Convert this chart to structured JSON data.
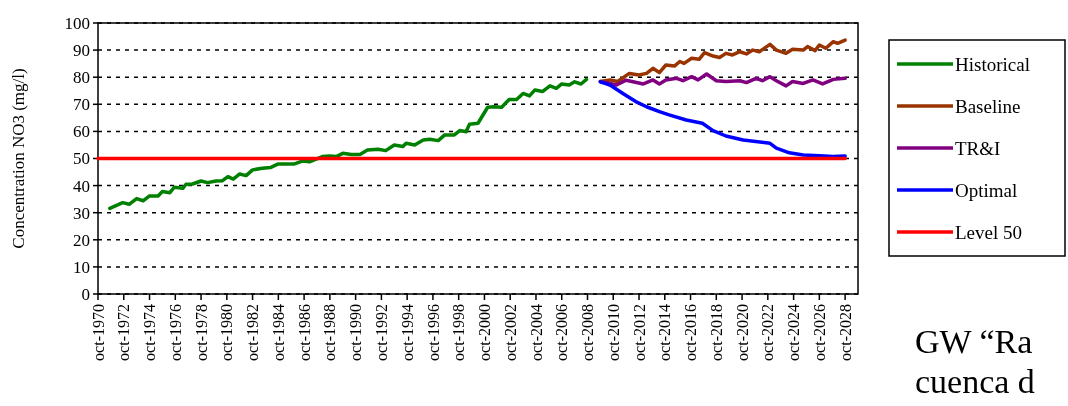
{
  "chart_data": {
    "type": "line",
    "ylabel": "Concentration NO3 (mg/l)",
    "xlim": [
      "1970-10",
      "2029-10"
    ],
    "ylim": [
      0,
      100
    ],
    "yticks": [
      0,
      10,
      20,
      30,
      40,
      50,
      60,
      70,
      80,
      90,
      100
    ],
    "xticks": [
      {
        "value": "1970-10",
        "label": "oct-1970"
      },
      {
        "value": "1972-10",
        "label": "oct-1972"
      },
      {
        "value": "1974-10",
        "label": "oct-1974"
      },
      {
        "value": "1976-10",
        "label": "oct-1976"
      },
      {
        "value": "1978-10",
        "label": "oct-1978"
      },
      {
        "value": "1980-10",
        "label": "oct-1980"
      },
      {
        "value": "1982-10",
        "label": "oct-1982"
      },
      {
        "value": "1984-10",
        "label": "oct-1984"
      },
      {
        "value": "1986-10",
        "label": "oct-1986"
      },
      {
        "value": "1988-10",
        "label": "oct-1988"
      },
      {
        "value": "1990-10",
        "label": "oct-1990"
      },
      {
        "value": "1992-10",
        "label": "oct-1992"
      },
      {
        "value": "1994-10",
        "label": "oct-1994"
      },
      {
        "value": "1996-10",
        "label": "oct-1996"
      },
      {
        "value": "1998-10",
        "label": "oct-1998"
      },
      {
        "value": "2000-10",
        "label": "oct-2000"
      },
      {
        "value": "2002-10",
        "label": "oct-2002"
      },
      {
        "value": "2004-10",
        "label": "oct-2004"
      },
      {
        "value": "2006-10",
        "label": "oct-2006"
      },
      {
        "value": "2008-10",
        "label": "oct-2008"
      },
      {
        "value": "2010-10",
        "label": "oct-2010"
      },
      {
        "value": "2012-10",
        "label": "oct-2012"
      },
      {
        "value": "2014-10",
        "label": "oct-2014"
      },
      {
        "value": "2016-10",
        "label": "oct-2016"
      },
      {
        "value": "2018-10",
        "label": "oct-2018"
      },
      {
        "value": "2020-10",
        "label": "oct-2020"
      },
      {
        "value": "2022-10",
        "label": "oct-2022"
      },
      {
        "value": "2024-10",
        "label": "oct-2024"
      },
      {
        "value": "2026-10",
        "label": "oct-2026"
      },
      {
        "value": "2028-10",
        "label": "oct-2028"
      }
    ],
    "grid": "y",
    "legend": "right",
    "marker": "none",
    "line_style": "solid",
    "annotations": [
      "GW “Ra",
      "cuenca d"
    ],
    "series": [
      {
        "name": "Historical",
        "color": "#008000",
        "x": [
          "1971-09",
          "1972-09",
          "1973-03",
          "1973-10",
          "1974-04",
          "1974-10",
          "1975-06",
          "1975-10",
          "1976-05",
          "1976-09",
          "1977-05",
          "1977-08",
          "1978-02",
          "1978-10",
          "1979-04",
          "1979-12",
          "1980-06",
          "1980-11",
          "1981-04",
          "1981-10",
          "1982-04",
          "1982-10",
          "1983-07",
          "1984-03",
          "1984-10",
          "1986-01",
          "1986-09",
          "1987-03",
          "1988-03",
          "1988-10",
          "1989-04",
          "1989-10",
          "1990-06",
          "1991-02",
          "1991-09",
          "1992-07",
          "1993-02",
          "1993-10",
          "1994-06",
          "1994-09",
          "1995-05",
          "1996-01",
          "1996-07",
          "1997-03",
          "1997-09",
          "1998-06",
          "1998-11",
          "1999-05",
          "1999-08",
          "2000-04",
          "2001-01",
          "2001-07",
          "2002-02",
          "2002-09",
          "2003-04",
          "2003-10",
          "2004-04",
          "2004-09",
          "2005-04",
          "2005-11",
          "2006-05",
          "2006-10",
          "2007-05",
          "2007-10",
          "2008-04",
          "2008-09"
        ],
        "values": [
          31.6,
          33.7,
          33.1,
          35.2,
          34.4,
          36.2,
          36.2,
          37.8,
          37.4,
          39.4,
          39.0,
          40.5,
          40.6,
          41.7,
          41.1,
          41.7,
          41.8,
          43.3,
          42.4,
          44.3,
          43.7,
          45.8,
          46.4,
          46.7,
          48.0,
          48.0,
          49.1,
          48.8,
          50.7,
          50.9,
          50.7,
          51.9,
          51.5,
          51.5,
          53.1,
          53.4,
          52.9,
          55.0,
          54.4,
          55.6,
          55.0,
          56.8,
          57.1,
          56.6,
          58.7,
          58.7,
          60.3,
          59.9,
          62.6,
          63.0,
          68.9,
          69.1,
          68.9,
          71.8,
          71.8,
          74.0,
          73.1,
          75.3,
          74.7,
          76.8,
          75.9,
          77.5,
          77.1,
          78.3,
          77.5,
          79.2
        ]
      },
      {
        "name": "Baseline",
        "color": "#993300",
        "x": [
          "2009-10",
          "2010-07",
          "2011-02",
          "2012-01",
          "2012-10",
          "2013-05",
          "2013-11",
          "2014-05",
          "2014-11",
          "2015-07",
          "2015-12",
          "2016-04",
          "2016-11",
          "2017-06",
          "2017-11",
          "2018-07",
          "2019-01",
          "2019-07",
          "2020-01",
          "2020-08",
          "2021-02",
          "2021-08",
          "2022-02",
          "2022-12",
          "2023-06",
          "2024-03",
          "2024-09",
          "2025-07",
          "2025-11",
          "2026-06",
          "2026-10",
          "2027-04",
          "2027-11",
          "2028-03",
          "2028-10"
        ],
        "values": [
          78.4,
          79.0,
          78.4,
          81.4,
          80.8,
          81.4,
          83.3,
          81.7,
          84.5,
          84.1,
          85.8,
          85.1,
          87.0,
          86.6,
          89.1,
          87.8,
          87.3,
          88.8,
          88.2,
          89.4,
          88.6,
          90.0,
          89.4,
          92.1,
          90.0,
          88.8,
          90.3,
          90.0,
          91.3,
          89.8,
          91.9,
          90.7,
          93.1,
          92.5,
          93.7
        ]
      },
      {
        "name": "TR&I",
        "color": "#800080",
        "x": [
          "2009-10",
          "2010-07",
          "2011-01",
          "2011-10",
          "2013-02",
          "2013-11",
          "2014-05",
          "2014-11",
          "2015-09",
          "2016-03",
          "2016-11",
          "2017-05",
          "2018-01",
          "2018-10",
          "2019-07",
          "2020-08",
          "2021-02",
          "2021-11",
          "2022-05",
          "2022-12",
          "2023-06",
          "2024-03",
          "2024-09",
          "2025-07",
          "2026-04",
          "2027-01",
          "2027-11",
          "2028-10"
        ],
        "values": [
          78.4,
          77.7,
          77.1,
          78.9,
          77.5,
          79.0,
          77.5,
          79.0,
          79.6,
          78.7,
          80.2,
          79.0,
          81.2,
          78.7,
          78.4,
          78.7,
          78.0,
          79.6,
          78.7,
          80.2,
          78.7,
          76.8,
          78.4,
          77.7,
          79.0,
          77.5,
          79.2,
          79.6
        ]
      },
      {
        "name": "Optimal",
        "color": "#0000ff",
        "x": [
          "2009-10",
          "2010-07",
          "2011-07",
          "2012-07",
          "2013-05",
          "2014-05",
          "2015-02",
          "2016-06",
          "2017-09",
          "2018-07",
          "2019-07",
          "2020-11",
          "2022-12",
          "2023-06",
          "2024-06",
          "2025-07",
          "2026-10",
          "2027-11",
          "2028-10"
        ],
        "values": [
          78.3,
          77.1,
          74.0,
          71.0,
          69.1,
          67.3,
          66.1,
          64.2,
          63.0,
          60.3,
          58.3,
          56.8,
          55.6,
          53.8,
          52.1,
          51.3,
          51.0,
          50.7,
          50.9
        ]
      },
      {
        "name": "Level 50",
        "color": "#ff0000",
        "x": [
          "1970-10",
          "2028-10"
        ],
        "values": [
          50,
          50
        ]
      }
    ]
  }
}
